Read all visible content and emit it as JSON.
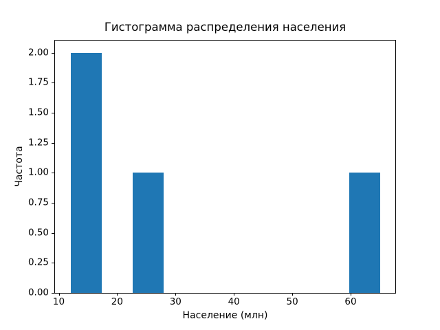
{
  "chart_data": {
    "type": "bar",
    "subtype": "histogram",
    "title": "Гистограмма распределения населения",
    "xlabel": "Население (млн)",
    "ylabel": "Частота",
    "bar_color": "#1f77b4",
    "axis_color": "#000000",
    "background_color": "#ffffff",
    "grid": false,
    "legend": null,
    "xlim": [
      9.35,
      67.65
    ],
    "ylim": [
      0,
      2.1
    ],
    "xticks": [
      10,
      20,
      30,
      40,
      50,
      60
    ],
    "yticks": [
      "0.00",
      "0.25",
      "0.50",
      "0.75",
      "1.00",
      "1.25",
      "1.50",
      "1.75",
      "2.00"
    ],
    "bars": [
      {
        "x0": 12.0,
        "x1": 17.3,
        "frequency": 2
      },
      {
        "x0": 22.6,
        "x1": 27.9,
        "frequency": 1
      },
      {
        "x0": 59.7,
        "x1": 65.0,
        "frequency": 1
      }
    ]
  }
}
